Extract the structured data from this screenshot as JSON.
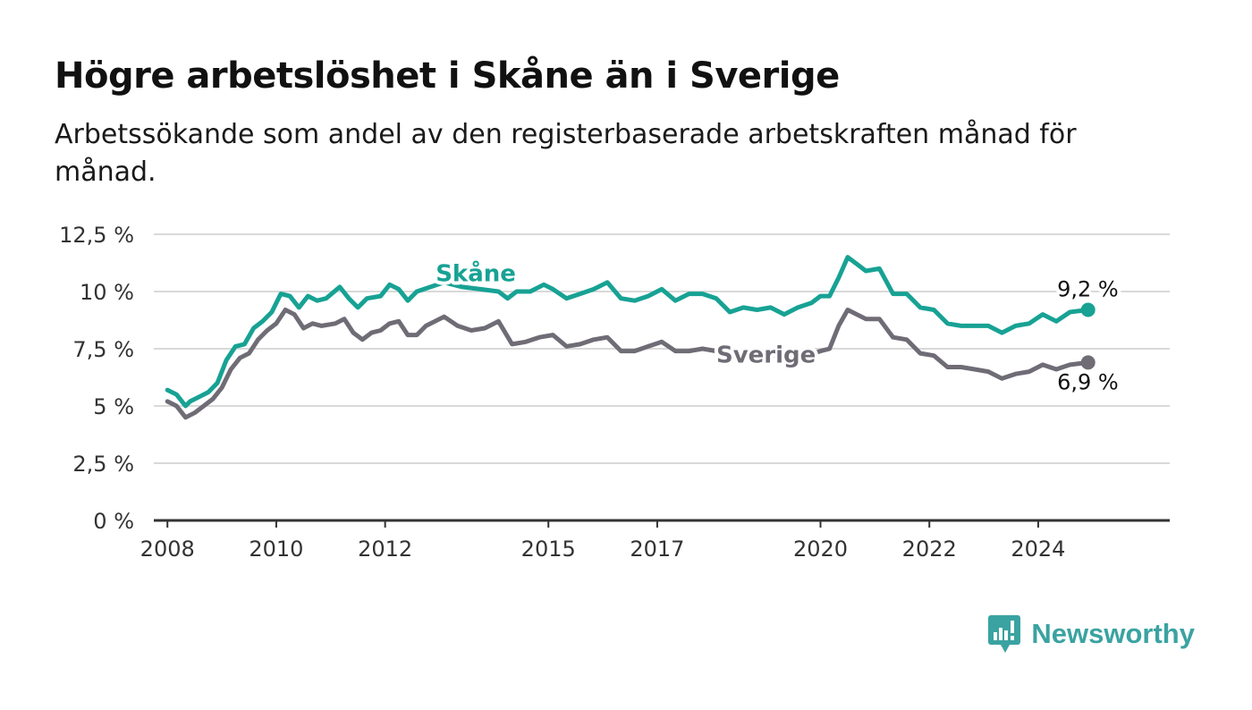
{
  "header": {
    "title": "Högre arbetslöshet i Skåne än i Sverige",
    "subtitle": "Arbetssökande som andel av den registerbaserade arbetskraften månad för månad."
  },
  "brand": {
    "name": "Newsworthy",
    "icon": "newsworthy-logo-icon",
    "color": "#3aa3a1"
  },
  "chart_data": {
    "type": "line",
    "title": "Högre arbetslöshet i Skåne än i Sverige",
    "subtitle": "Arbetssökande som andel av den registerbaserade arbetskraften månad för månad.",
    "xlabel": "",
    "ylabel": "",
    "ylim": [
      0,
      12.5
    ],
    "xlim": [
      "2007-10",
      "2026-06"
    ],
    "grid": true,
    "y_ticks": [
      {
        "value": 0,
        "label": "0 %"
      },
      {
        "value": 2.5,
        "label": "2,5 %"
      },
      {
        "value": 5,
        "label": "5 %"
      },
      {
        "value": 7.5,
        "label": "7,5 %"
      },
      {
        "value": 10,
        "label": "10 %"
      },
      {
        "value": 12.5,
        "label": "12,5 %"
      }
    ],
    "x_ticks": [
      {
        "value": "2008-01",
        "label": "2008"
      },
      {
        "value": "2010-01",
        "label": "2010"
      },
      {
        "value": "2012-01",
        "label": "2012"
      },
      {
        "value": "2015-01",
        "label": "2015"
      },
      {
        "value": "2017-01",
        "label": "2017"
      },
      {
        "value": "2020-01",
        "label": "2020"
      },
      {
        "value": "2022-01",
        "label": "2022"
      },
      {
        "value": "2024-01",
        "label": "2024"
      }
    ],
    "series": [
      {
        "name": "Skåne",
        "color": "#17a294",
        "end_label": "9,2 %",
        "points": [
          [
            "2008-01",
            5.7
          ],
          [
            "2008-03",
            5.5
          ],
          [
            "2008-05",
            5.0
          ],
          [
            "2008-06",
            5.2
          ],
          [
            "2008-08",
            5.4
          ],
          [
            "2008-10",
            5.6
          ],
          [
            "2008-12",
            6.0
          ],
          [
            "2009-02",
            7.0
          ],
          [
            "2009-04",
            7.6
          ],
          [
            "2009-06",
            7.7
          ],
          [
            "2009-08",
            8.4
          ],
          [
            "2009-10",
            8.7
          ],
          [
            "2009-12",
            9.1
          ],
          [
            "2010-02",
            9.9
          ],
          [
            "2010-04",
            9.8
          ],
          [
            "2010-06",
            9.3
          ],
          [
            "2010-08",
            9.8
          ],
          [
            "2010-10",
            9.6
          ],
          [
            "2010-12",
            9.7
          ],
          [
            "2011-03",
            10.2
          ],
          [
            "2011-05",
            9.7
          ],
          [
            "2011-07",
            9.3
          ],
          [
            "2011-09",
            9.7
          ],
          [
            "2011-12",
            9.8
          ],
          [
            "2012-02",
            10.3
          ],
          [
            "2012-04",
            10.1
          ],
          [
            "2012-06",
            9.6
          ],
          [
            "2012-08",
            10.0
          ],
          [
            "2012-11",
            10.2
          ],
          [
            "2013-02",
            10.4
          ],
          [
            "2013-06",
            10.2
          ],
          [
            "2013-10",
            10.1
          ],
          [
            "2014-02",
            10.0
          ],
          [
            "2014-04",
            9.7
          ],
          [
            "2014-06",
            10.0
          ],
          [
            "2014-09",
            10.0
          ],
          [
            "2014-12",
            10.3
          ],
          [
            "2015-02",
            10.1
          ],
          [
            "2015-05",
            9.7
          ],
          [
            "2015-08",
            9.9
          ],
          [
            "2015-11",
            10.1
          ],
          [
            "2016-02",
            10.4
          ],
          [
            "2016-05",
            9.7
          ],
          [
            "2016-08",
            9.6
          ],
          [
            "2016-11",
            9.8
          ],
          [
            "2017-02",
            10.1
          ],
          [
            "2017-05",
            9.6
          ],
          [
            "2017-08",
            9.9
          ],
          [
            "2017-11",
            9.9
          ],
          [
            "2018-02",
            9.7
          ],
          [
            "2018-05",
            9.1
          ],
          [
            "2018-08",
            9.3
          ],
          [
            "2018-11",
            9.2
          ],
          [
            "2019-02",
            9.3
          ],
          [
            "2019-05",
            9.0
          ],
          [
            "2019-08",
            9.3
          ],
          [
            "2019-11",
            9.5
          ],
          [
            "2020-01",
            9.8
          ],
          [
            "2020-03",
            9.8
          ],
          [
            "2020-05",
            10.6
          ],
          [
            "2020-07",
            11.5
          ],
          [
            "2020-09",
            11.2
          ],
          [
            "2020-11",
            10.9
          ],
          [
            "2021-02",
            11.0
          ],
          [
            "2021-05",
            9.9
          ],
          [
            "2021-08",
            9.9
          ],
          [
            "2021-11",
            9.3
          ],
          [
            "2022-02",
            9.2
          ],
          [
            "2022-05",
            8.6
          ],
          [
            "2022-08",
            8.5
          ],
          [
            "2022-11",
            8.5
          ],
          [
            "2023-02",
            8.5
          ],
          [
            "2023-05",
            8.2
          ],
          [
            "2023-08",
            8.5
          ],
          [
            "2023-11",
            8.6
          ],
          [
            "2024-02",
            9.0
          ],
          [
            "2024-05",
            8.7
          ],
          [
            "2024-08",
            9.1
          ],
          [
            "2024-12",
            9.2
          ]
        ]
      },
      {
        "name": "Sverige",
        "color": "#6f6c76",
        "end_label": "6,9 %",
        "points": [
          [
            "2008-01",
            5.2
          ],
          [
            "2008-03",
            5.0
          ],
          [
            "2008-05",
            4.5
          ],
          [
            "2008-07",
            4.7
          ],
          [
            "2008-09",
            5.0
          ],
          [
            "2008-11",
            5.3
          ],
          [
            "2009-01",
            5.8
          ],
          [
            "2009-03",
            6.6
          ],
          [
            "2009-05",
            7.1
          ],
          [
            "2009-07",
            7.3
          ],
          [
            "2009-09",
            7.9
          ],
          [
            "2009-11",
            8.3
          ],
          [
            "2010-01",
            8.6
          ],
          [
            "2010-03",
            9.2
          ],
          [
            "2010-05",
            9.0
          ],
          [
            "2010-07",
            8.4
          ],
          [
            "2010-09",
            8.6
          ],
          [
            "2010-11",
            8.5
          ],
          [
            "2011-02",
            8.6
          ],
          [
            "2011-04",
            8.8
          ],
          [
            "2011-06",
            8.2
          ],
          [
            "2011-08",
            7.9
          ],
          [
            "2011-10",
            8.2
          ],
          [
            "2011-12",
            8.3
          ],
          [
            "2012-02",
            8.6
          ],
          [
            "2012-04",
            8.7
          ],
          [
            "2012-06",
            8.1
          ],
          [
            "2012-08",
            8.1
          ],
          [
            "2012-10",
            8.5
          ],
          [
            "2013-02",
            8.9
          ],
          [
            "2013-05",
            8.5
          ],
          [
            "2013-08",
            8.3
          ],
          [
            "2013-11",
            8.4
          ],
          [
            "2014-02",
            8.7
          ],
          [
            "2014-05",
            7.7
          ],
          [
            "2014-08",
            7.8
          ],
          [
            "2014-11",
            8.0
          ],
          [
            "2015-02",
            8.1
          ],
          [
            "2015-05",
            7.6
          ],
          [
            "2015-08",
            7.7
          ],
          [
            "2015-11",
            7.9
          ],
          [
            "2016-02",
            8.0
          ],
          [
            "2016-05",
            7.4
          ],
          [
            "2016-08",
            7.4
          ],
          [
            "2016-11",
            7.6
          ],
          [
            "2017-02",
            7.8
          ],
          [
            "2017-05",
            7.4
          ],
          [
            "2017-08",
            7.4
          ],
          [
            "2017-11",
            7.5
          ],
          [
            "2018-02",
            7.4
          ],
          [
            "2018-04",
            7.2
          ],
          [
            "2019-10",
            7.2
          ],
          [
            "2020-01",
            7.4
          ],
          [
            "2020-03",
            7.5
          ],
          [
            "2020-05",
            8.5
          ],
          [
            "2020-07",
            9.2
          ],
          [
            "2020-09",
            9.0
          ],
          [
            "2020-11",
            8.8
          ],
          [
            "2021-02",
            8.8
          ],
          [
            "2021-05",
            8.0
          ],
          [
            "2021-08",
            7.9
          ],
          [
            "2021-11",
            7.3
          ],
          [
            "2022-02",
            7.2
          ],
          [
            "2022-05",
            6.7
          ],
          [
            "2022-08",
            6.7
          ],
          [
            "2022-11",
            6.6
          ],
          [
            "2023-02",
            6.5
          ],
          [
            "2023-05",
            6.2
          ],
          [
            "2023-08",
            6.4
          ],
          [
            "2023-11",
            6.5
          ],
          [
            "2024-02",
            6.8
          ],
          [
            "2024-05",
            6.6
          ],
          [
            "2024-08",
            6.8
          ],
          [
            "2024-12",
            6.9
          ]
        ]
      }
    ]
  }
}
